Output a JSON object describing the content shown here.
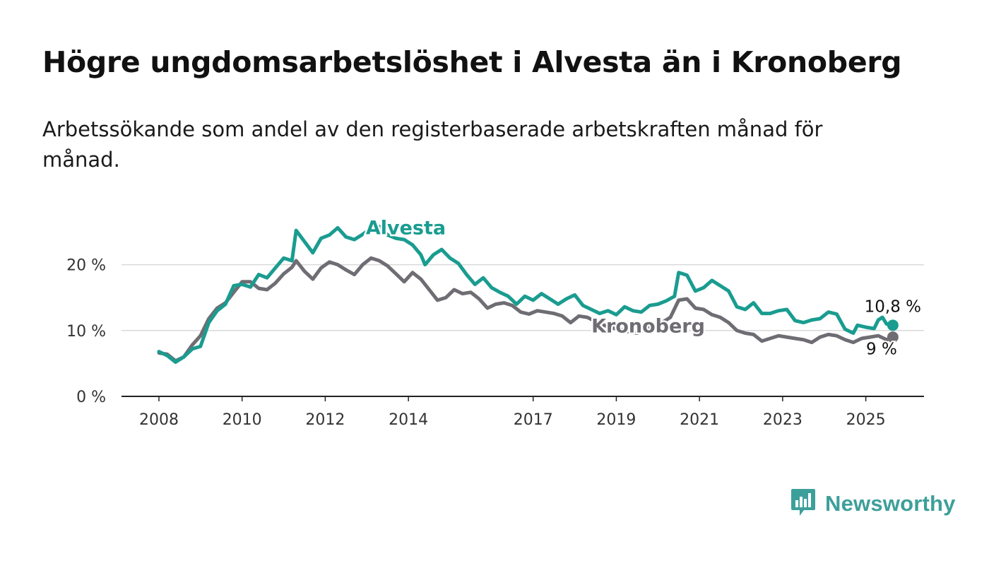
{
  "header": {
    "title": "Högre ungdomsarbetslöshet i Alvesta än i Kronoberg",
    "subtitle": "Arbetssökande som andel av den registerbaserade arbetskraften månad för månad."
  },
  "brand": {
    "name": "Newsworthy",
    "color": "#3d9f9a"
  },
  "chart_data": {
    "type": "line",
    "x_ticks": [
      "2008",
      "2010",
      "2012",
      "2014",
      "2017",
      "2019",
      "2021",
      "2023",
      "2025"
    ],
    "y_ticks": [
      {
        "value": 0,
        "label": "0 %"
      },
      {
        "value": 10,
        "label": "10 %"
      },
      {
        "value": 20,
        "label": "20 %"
      }
    ],
    "ylim": [
      0,
      28
    ],
    "xlim": [
      2007.1,
      2026.4
    ],
    "grid": true,
    "series": [
      {
        "name": "Alvesta",
        "color": "#1a9c90",
        "end_label": "10,8 %",
        "points": [
          [
            2008.0,
            6.8
          ],
          [
            2008.2,
            6.2
          ],
          [
            2008.4,
            5.2
          ],
          [
            2008.6,
            6.0
          ],
          [
            2008.8,
            7.2
          ],
          [
            2009.0,
            7.6
          ],
          [
            2009.2,
            11.2
          ],
          [
            2009.4,
            13.0
          ],
          [
            2009.6,
            14.0
          ],
          [
            2009.8,
            16.8
          ],
          [
            2010.0,
            17.0
          ],
          [
            2010.2,
            16.6
          ],
          [
            2010.4,
            18.5
          ],
          [
            2010.6,
            18.0
          ],
          [
            2010.8,
            19.5
          ],
          [
            2011.0,
            21.0
          ],
          [
            2011.2,
            20.6
          ],
          [
            2011.3,
            25.2
          ],
          [
            2011.5,
            23.5
          ],
          [
            2011.7,
            21.8
          ],
          [
            2011.9,
            24.0
          ],
          [
            2012.1,
            24.5
          ],
          [
            2012.3,
            25.6
          ],
          [
            2012.5,
            24.2
          ],
          [
            2012.7,
            23.8
          ],
          [
            2012.9,
            24.6
          ],
          [
            2013.1,
            25.5
          ],
          [
            2013.3,
            25.8
          ],
          [
            2013.5,
            24.5
          ],
          [
            2013.7,
            24.0
          ],
          [
            2013.9,
            23.8
          ],
          [
            2014.1,
            23.0
          ],
          [
            2014.3,
            21.5
          ],
          [
            2014.4,
            20.0
          ],
          [
            2014.6,
            21.5
          ],
          [
            2014.8,
            22.3
          ],
          [
            2015.0,
            21.0
          ],
          [
            2015.2,
            20.2
          ],
          [
            2015.4,
            18.5
          ],
          [
            2015.6,
            17.0
          ],
          [
            2015.8,
            18.0
          ],
          [
            2016.0,
            16.5
          ],
          [
            2016.2,
            15.8
          ],
          [
            2016.4,
            15.2
          ],
          [
            2016.6,
            14.0
          ],
          [
            2016.8,
            15.2
          ],
          [
            2017.0,
            14.6
          ],
          [
            2017.2,
            15.6
          ],
          [
            2017.4,
            14.8
          ],
          [
            2017.6,
            14.0
          ],
          [
            2017.8,
            14.8
          ],
          [
            2018.0,
            15.4
          ],
          [
            2018.2,
            13.8
          ],
          [
            2018.4,
            13.2
          ],
          [
            2018.6,
            12.6
          ],
          [
            2018.8,
            13.0
          ],
          [
            2019.0,
            12.4
          ],
          [
            2019.2,
            13.6
          ],
          [
            2019.4,
            13.0
          ],
          [
            2019.6,
            12.8
          ],
          [
            2019.8,
            13.8
          ],
          [
            2020.0,
            14.0
          ],
          [
            2020.2,
            14.5
          ],
          [
            2020.4,
            15.2
          ],
          [
            2020.5,
            18.8
          ],
          [
            2020.7,
            18.4
          ],
          [
            2020.9,
            16.0
          ],
          [
            2021.1,
            16.5
          ],
          [
            2021.3,
            17.6
          ],
          [
            2021.5,
            16.8
          ],
          [
            2021.7,
            16.0
          ],
          [
            2021.9,
            13.6
          ],
          [
            2022.1,
            13.2
          ],
          [
            2022.3,
            14.2
          ],
          [
            2022.5,
            12.6
          ],
          [
            2022.7,
            12.6
          ],
          [
            2022.9,
            13.0
          ],
          [
            2023.1,
            13.2
          ],
          [
            2023.3,
            11.5
          ],
          [
            2023.5,
            11.2
          ],
          [
            2023.7,
            11.6
          ],
          [
            2023.9,
            11.8
          ],
          [
            2024.1,
            12.8
          ],
          [
            2024.3,
            12.5
          ],
          [
            2024.5,
            10.2
          ],
          [
            2024.7,
            9.6
          ],
          [
            2024.8,
            10.8
          ],
          [
            2025.0,
            10.5
          ],
          [
            2025.2,
            10.3
          ],
          [
            2025.3,
            11.6
          ],
          [
            2025.4,
            12.0
          ],
          [
            2025.5,
            11.0
          ],
          [
            2025.65,
            10.8
          ]
        ]
      },
      {
        "name": "Kronoberg",
        "color": "#6f6d73",
        "end_label": "9 %",
        "points": [
          [
            2008.0,
            6.6
          ],
          [
            2008.2,
            6.4
          ],
          [
            2008.4,
            5.4
          ],
          [
            2008.6,
            6.0
          ],
          [
            2008.8,
            7.8
          ],
          [
            2009.0,
            9.2
          ],
          [
            2009.2,
            11.8
          ],
          [
            2009.4,
            13.4
          ],
          [
            2009.6,
            14.2
          ],
          [
            2009.8,
            15.8
          ],
          [
            2010.0,
            17.4
          ],
          [
            2010.2,
            17.4
          ],
          [
            2010.4,
            16.4
          ],
          [
            2010.6,
            16.2
          ],
          [
            2010.8,
            17.2
          ],
          [
            2011.0,
            18.6
          ],
          [
            2011.2,
            19.6
          ],
          [
            2011.3,
            20.6
          ],
          [
            2011.5,
            19.0
          ],
          [
            2011.7,
            17.8
          ],
          [
            2011.9,
            19.5
          ],
          [
            2012.1,
            20.4
          ],
          [
            2012.3,
            20.0
          ],
          [
            2012.5,
            19.2
          ],
          [
            2012.7,
            18.5
          ],
          [
            2012.9,
            20.0
          ],
          [
            2013.1,
            21.0
          ],
          [
            2013.3,
            20.6
          ],
          [
            2013.5,
            19.8
          ],
          [
            2013.7,
            18.6
          ],
          [
            2013.9,
            17.4
          ],
          [
            2014.1,
            18.8
          ],
          [
            2014.3,
            17.8
          ],
          [
            2014.5,
            16.2
          ],
          [
            2014.7,
            14.6
          ],
          [
            2014.9,
            15.0
          ],
          [
            2015.1,
            16.2
          ],
          [
            2015.3,
            15.6
          ],
          [
            2015.5,
            15.8
          ],
          [
            2015.7,
            14.8
          ],
          [
            2015.9,
            13.4
          ],
          [
            2016.1,
            14.0
          ],
          [
            2016.3,
            14.2
          ],
          [
            2016.5,
            13.8
          ],
          [
            2016.7,
            12.8
          ],
          [
            2016.9,
            12.5
          ],
          [
            2017.1,
            13.0
          ],
          [
            2017.3,
            12.8
          ],
          [
            2017.5,
            12.6
          ],
          [
            2017.7,
            12.2
          ],
          [
            2017.9,
            11.2
          ],
          [
            2018.1,
            12.2
          ],
          [
            2018.3,
            12.0
          ],
          [
            2018.5,
            11.4
          ],
          [
            2018.7,
            10.8
          ],
          [
            2018.9,
            10.4
          ],
          [
            2019.1,
            10.2
          ],
          [
            2019.3,
            9.8
          ],
          [
            2019.5,
            9.6
          ],
          [
            2019.7,
            10.2
          ],
          [
            2019.9,
            10.8
          ],
          [
            2020.1,
            11.2
          ],
          [
            2020.3,
            12.0
          ],
          [
            2020.5,
            14.6
          ],
          [
            2020.7,
            14.8
          ],
          [
            2020.9,
            13.4
          ],
          [
            2021.1,
            13.2
          ],
          [
            2021.3,
            12.4
          ],
          [
            2021.5,
            12.0
          ],
          [
            2021.7,
            11.2
          ],
          [
            2021.9,
            10.0
          ],
          [
            2022.1,
            9.6
          ],
          [
            2022.3,
            9.4
          ],
          [
            2022.5,
            8.4
          ],
          [
            2022.7,
            8.8
          ],
          [
            2022.9,
            9.2
          ],
          [
            2023.1,
            9.0
          ],
          [
            2023.3,
            8.8
          ],
          [
            2023.5,
            8.6
          ],
          [
            2023.7,
            8.2
          ],
          [
            2023.9,
            9.0
          ],
          [
            2024.1,
            9.4
          ],
          [
            2024.3,
            9.2
          ],
          [
            2024.5,
            8.6
          ],
          [
            2024.7,
            8.2
          ],
          [
            2024.9,
            8.8
          ],
          [
            2025.1,
            9.0
          ],
          [
            2025.3,
            9.2
          ],
          [
            2025.5,
            8.6
          ],
          [
            2025.65,
            9.0
          ]
        ]
      }
    ]
  }
}
